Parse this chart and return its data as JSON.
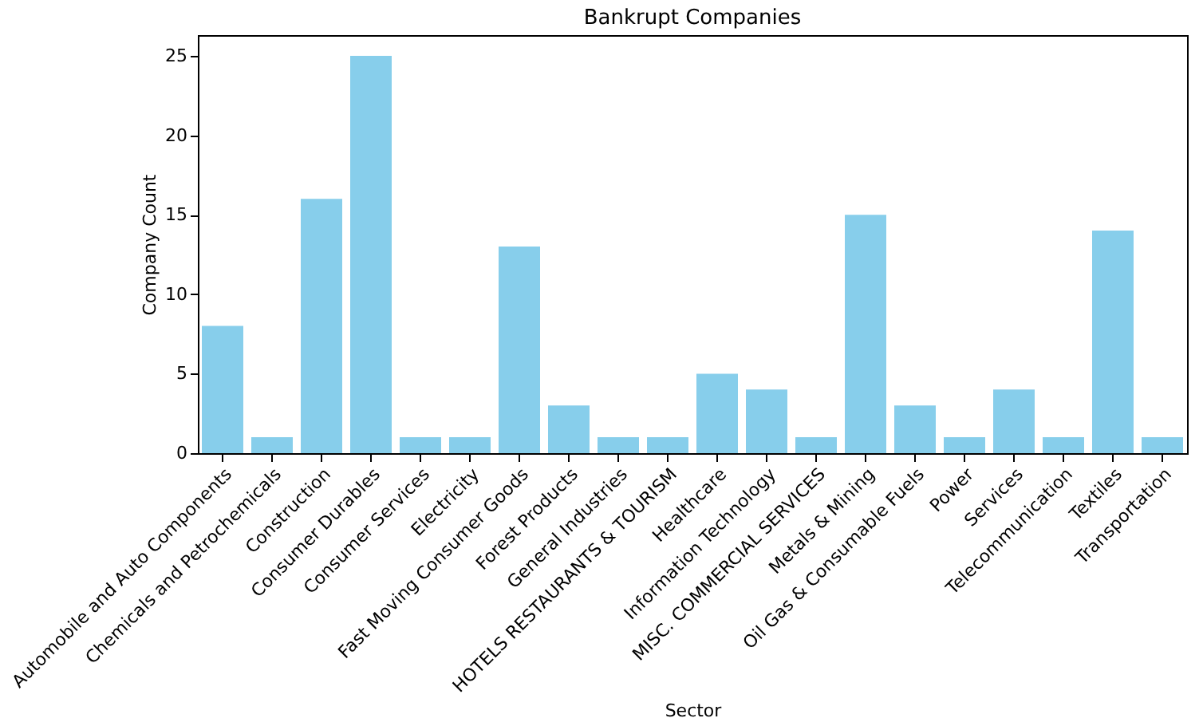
{
  "chart_data": {
    "type": "bar",
    "title": "Bankrupt Companies",
    "xlabel": "Sector",
    "ylabel": "Company Count",
    "categories": [
      "Automobile and Auto Components",
      "Chemicals and Petrochemicals",
      "Construction",
      "Consumer Durables",
      "Consumer Services",
      "Electricity",
      "Fast Moving Consumer Goods",
      "Forest Products",
      "General Industries",
      "HOTELS RESTAURANTS & TOURISM",
      "Healthcare",
      "Information Technology",
      "MISC. COMMERCIAL SERVICES",
      "Metals & Mining",
      "Oil Gas & Consumable Fuels",
      "Power",
      "Services",
      "Telecommunication",
      "Textiles",
      "Transportation"
    ],
    "values": [
      8,
      1,
      16,
      25,
      1,
      1,
      13,
      3,
      1,
      1,
      5,
      4,
      1,
      15,
      3,
      1,
      4,
      1,
      14,
      1
    ],
    "color": "#87ceeb",
    "ylim": [
      0,
      26.3
    ],
    "yticks": [
      0,
      5,
      10,
      15,
      20,
      25
    ],
    "grid": false
  }
}
